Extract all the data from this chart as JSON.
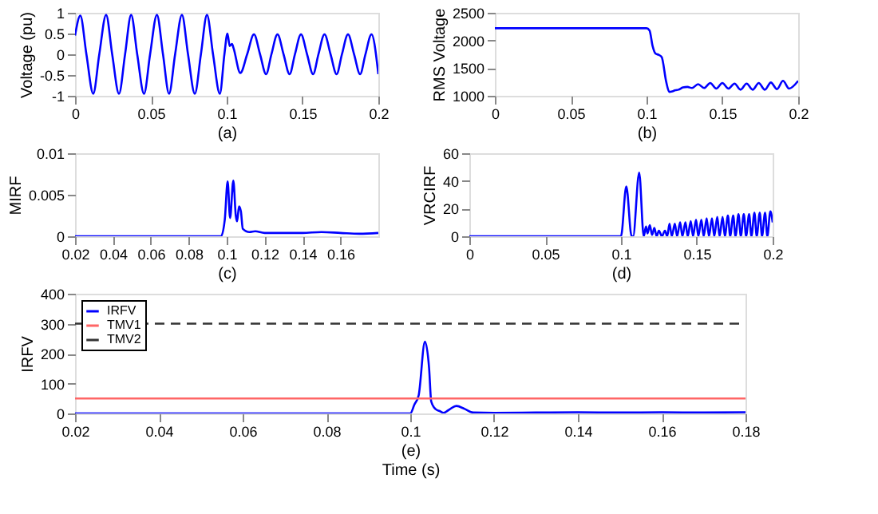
{
  "chart_data": [
    {
      "type": "line",
      "xlabel": "(a)",
      "ylabel": "Voltage (pu)",
      "xlim": [
        0,
        0.2
      ],
      "xticks": [
        0,
        0.05,
        0.1,
        0.15,
        0.2
      ],
      "ylim": [
        -1,
        1
      ],
      "yticks": [
        -1,
        -0.5,
        0,
        0.5,
        1
      ],
      "grid": false,
      "legend": false,
      "x": [
        0,
        0.0035,
        0.0075,
        0.012,
        0.016,
        0.0205,
        0.0245,
        0.029,
        0.033,
        0.037,
        0.041,
        0.0455,
        0.0495,
        0.054,
        0.058,
        0.062,
        0.066,
        0.0705,
        0.0745,
        0.079,
        0.083,
        0.087,
        0.091,
        0.0955,
        0.0985,
        0.1005,
        0.102,
        0.1035,
        0.1045,
        0.109,
        0.1135,
        0.118,
        0.122,
        0.126,
        0.1295,
        0.1335,
        0.1375,
        0.1415,
        0.145,
        0.149,
        0.153,
        0.157,
        0.1605,
        0.1645,
        0.1685,
        0.1725,
        0.176,
        0.18,
        0.184,
        0.188,
        0.1915,
        0.1955,
        0.2
      ],
      "series": [
        {
          "color": "#0000ff",
          "values": [
            0.45,
            0.93,
            0,
            -0.95,
            0,
            0.95,
            0,
            -0.95,
            0,
            0.95,
            0,
            -0.95,
            0,
            0.95,
            0,
            -0.95,
            0,
            0.95,
            0,
            -0.95,
            0,
            0.95,
            0,
            -0.95,
            0,
            0.5,
            0.2,
            0.25,
            0.15,
            -0.45,
            0,
            0.48,
            0,
            -0.48,
            0,
            0.48,
            0,
            -0.48,
            0,
            0.48,
            0,
            -0.48,
            0,
            0.48,
            0,
            -0.48,
            0,
            0.48,
            0,
            -0.48,
            0,
            0.48,
            -0.48
          ]
        }
      ]
    },
    {
      "type": "line",
      "xlabel": "(b)",
      "ylabel": "RMS Voltage",
      "xlim": [
        0,
        0.2
      ],
      "xticks": [
        0,
        0.05,
        0.1,
        0.15,
        0.2
      ],
      "ylim": [
        1000,
        2500
      ],
      "yticks": [
        1000,
        1500,
        2000,
        2500
      ],
      "grid": false,
      "legend": false,
      "x": [
        0,
        0.1,
        0.102,
        0.104,
        0.106,
        0.108,
        0.11,
        0.113,
        0.115,
        0.117,
        0.119,
        0.121,
        0.124,
        0.127,
        0.13,
        0.134,
        0.138,
        0.142,
        0.146,
        0.15,
        0.154,
        0.158,
        0.162,
        0.166,
        0.17,
        0.174,
        0.178,
        0.182,
        0.186,
        0.19,
        0.194,
        0.2
      ],
      "series": [
        {
          "color": "#0000ff",
          "values": [
            2220,
            2220,
            2180,
            1900,
            1760,
            1740,
            1700,
            1250,
            1070,
            1080,
            1100,
            1110,
            1150,
            1160,
            1140,
            1210,
            1140,
            1230,
            1130,
            1230,
            1130,
            1220,
            1110,
            1220,
            1110,
            1230,
            1110,
            1240,
            1120,
            1270,
            1130,
            1270
          ]
        }
      ]
    },
    {
      "type": "line",
      "xlabel": "(c)",
      "ylabel": "MIRF",
      "xlim": [
        0.02,
        0.18
      ],
      "xticks": [
        0.02,
        0.04,
        0.06,
        0.08,
        0.1,
        0.12,
        0.14,
        0.16
      ],
      "ylim": [
        0,
        0.01
      ],
      "yticks": [
        0,
        0.005,
        0.01
      ],
      "grid": false,
      "legend": false,
      "x": [
        0.02,
        0.097,
        0.099,
        0.1005,
        0.1018,
        0.1035,
        0.1048,
        0.1055,
        0.1065,
        0.1075,
        0.1085,
        0.112,
        0.115,
        0.12,
        0.13,
        0.14,
        0.15,
        0.16,
        0.17,
        0.18
      ],
      "series": [
        {
          "color": "#0000ff",
          "values": [
            0,
            0,
            0.002,
            0.0066,
            0.0022,
            0.0067,
            0.0025,
            0.0018,
            0.0036,
            0.003,
            0.0009,
            0.0005,
            0.0006,
            0.0004,
            0.0004,
            0.0004,
            0.0005,
            0.0004,
            0.0003,
            0.0004
          ]
        }
      ]
    },
    {
      "type": "line",
      "xlabel": "(d)",
      "ylabel": "VRCIRF",
      "xlim": [
        0,
        0.2
      ],
      "xticks": [
        0,
        0.05,
        0.1,
        0.15,
        0.2
      ],
      "ylim": [
        0,
        60
      ],
      "yticks": [
        0,
        20,
        40,
        60
      ],
      "grid": false,
      "legend": false,
      "x": [
        0,
        0.1,
        0.1035,
        0.107,
        0.108,
        0.112,
        0.115,
        0.1165,
        0.1175,
        0.119,
        0.1205,
        0.122,
        0.1235,
        0.125,
        0.127,
        0.129,
        0.1305,
        0.132,
        0.1335,
        0.1355,
        0.137,
        0.139,
        0.1405,
        0.1425,
        0.144,
        0.146,
        0.1475,
        0.1495,
        0.151,
        0.153,
        0.1545,
        0.1565,
        0.158,
        0.16,
        0.1615,
        0.1635,
        0.165,
        0.167,
        0.1685,
        0.1705,
        0.172,
        0.174,
        0.1755,
        0.1775,
        0.179,
        0.181,
        0.1825,
        0.1845,
        0.186,
        0.188,
        0.1895,
        0.1915,
        0.193,
        0.195,
        0.1965,
        0.1985,
        0.2
      ],
      "series": [
        {
          "color": "#0000ff",
          "values": [
            0,
            0,
            36,
            0,
            0,
            46,
            0,
            7,
            2,
            8,
            1,
            6,
            0,
            4,
            0,
            4,
            0,
            9,
            0,
            9,
            0,
            10,
            0,
            10,
            0,
            11,
            0,
            12,
            0,
            12,
            0,
            13,
            0,
            13,
            0,
            14,
            0,
            14,
            0,
            15,
            0,
            15,
            0,
            16,
            0,
            16,
            0,
            16,
            0,
            17,
            0,
            17,
            0,
            17,
            0,
            18,
            10
          ]
        }
      ]
    },
    {
      "type": "line",
      "xlabel": "(e)\nTime (s)",
      "ylabel": "IRFV",
      "xlim": [
        0.02,
        0.18
      ],
      "xticks": [
        0.02,
        0.04,
        0.06,
        0.08,
        0.1,
        0.12,
        0.14,
        0.16,
        0.18
      ],
      "ylim": [
        0,
        400
      ],
      "yticks": [
        0,
        100,
        200,
        300,
        400
      ],
      "grid": false,
      "legend": "top left",
      "x": [
        0.02,
        0.1,
        0.101,
        0.102,
        0.1035,
        0.1045,
        0.105,
        0.106,
        0.107,
        0.108,
        0.109,
        0.111,
        0.113,
        0.115,
        0.12,
        0.13,
        0.14,
        0.15,
        0.16,
        0.17,
        0.18
      ],
      "series": [
        {
          "name": "IRFV",
          "color": "#0000ff",
          "values": [
            0,
            0,
            30,
            60,
            240,
            150,
            40,
            15,
            8,
            2,
            10,
            25,
            15,
            3,
            2,
            3,
            4,
            3,
            4,
            3,
            4
          ]
        }
      ],
      "ref_lines": [
        {
          "axis": "y",
          "value": 50,
          "label": "TMV1",
          "color": "#ff6666"
        },
        {
          "axis": "y",
          "value": 300,
          "label": "TMV2",
          "color": "#333333",
          "line_style": "dashed"
        }
      ]
    }
  ]
}
